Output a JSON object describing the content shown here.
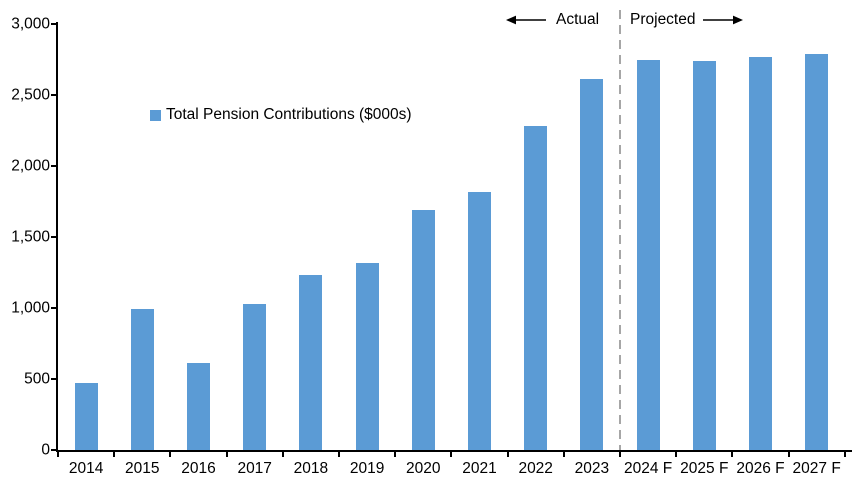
{
  "chart_data": {
    "type": "bar",
    "title": "",
    "series_name": "Total Pension Contributions ($000s)",
    "categories": [
      "2014",
      "2015",
      "2016",
      "2017",
      "2018",
      "2019",
      "2020",
      "2021",
      "2022",
      "2023",
      "2024 F",
      "2025 F",
      "2026 F",
      "2027 F"
    ],
    "values": [
      475,
      990,
      615,
      1025,
      1235,
      1320,
      1690,
      1815,
      2280,
      2610,
      2750,
      2740,
      2765,
      2790
    ],
    "xlabel": "",
    "ylabel": "",
    "ylim": [
      0,
      3000
    ],
    "y_ticks": [
      {
        "value": 0,
        "label": "0"
      },
      {
        "value": 500,
        "label": "500"
      },
      {
        "value": 1000,
        "label": "1,000"
      },
      {
        "value": 1500,
        "label": "1,500"
      },
      {
        "value": 2000,
        "label": "2,000"
      },
      {
        "value": 2500,
        "label": "2,500"
      },
      {
        "value": 3000,
        "label": "3,000"
      }
    ],
    "grid": false,
    "legend_position": "inside-upper-left",
    "divider_after_category": "2023",
    "annotations": {
      "actual_label": "Actual",
      "projected_label": "Projected"
    },
    "colors": {
      "bar": "#5B9BD5",
      "divider": "#A6A6A6",
      "axis": "#000000",
      "text": "#000000",
      "background": "#FFFFFF"
    }
  }
}
